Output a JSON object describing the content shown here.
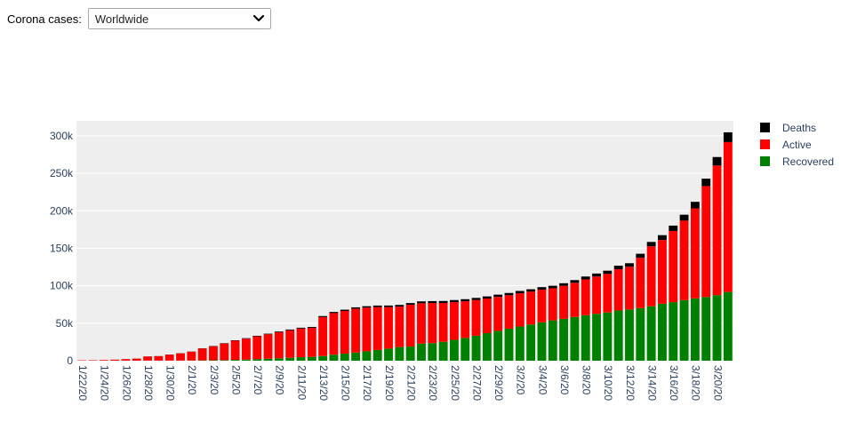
{
  "controls": {
    "label": "Corona cases:",
    "selected": "Worldwide"
  },
  "chart_data": {
    "type": "bar",
    "stacked": true,
    "categories": [
      "1/22/20",
      "1/23/20",
      "1/24/20",
      "1/25/20",
      "1/26/20",
      "1/27/20",
      "1/28/20",
      "1/29/20",
      "1/30/20",
      "1/31/20",
      "2/1/20",
      "2/2/20",
      "2/3/20",
      "2/4/20",
      "2/5/20",
      "2/6/20",
      "2/7/20",
      "2/8/20",
      "2/9/20",
      "2/10/20",
      "2/11/20",
      "2/12/20",
      "2/13/20",
      "2/14/20",
      "2/15/20",
      "2/16/20",
      "2/17/20",
      "2/18/20",
      "2/19/20",
      "2/20/20",
      "2/21/20",
      "2/22/20",
      "2/23/20",
      "2/24/20",
      "2/25/20",
      "2/26/20",
      "2/27/20",
      "2/28/20",
      "2/29/20",
      "3/1/20",
      "3/2/20",
      "3/3/20",
      "3/4/20",
      "3/5/20",
      "3/6/20",
      "3/7/20",
      "3/8/20",
      "3/9/20",
      "3/10/20",
      "3/11/20",
      "3/12/20",
      "3/13/20",
      "3/14/20",
      "3/15/20",
      "3/16/20",
      "3/17/20",
      "3/18/20",
      "3/19/20",
      "3/20/20",
      "3/21/20"
    ],
    "tick_labels": [
      "1/22/20",
      "1/24/20",
      "1/26/20",
      "1/28/20",
      "1/30/20",
      "2/1/20",
      "2/3/20",
      "2/5/20",
      "2/7/20",
      "2/9/20",
      "2/11/20",
      "2/13/20",
      "2/15/20",
      "2/17/20",
      "2/19/20",
      "2/21/20",
      "2/23/20",
      "2/25/20",
      "2/27/20",
      "2/29/20",
      "3/2/20",
      "3/4/20",
      "3/6/20",
      "3/8/20",
      "3/10/20",
      "3/12/20",
      "3/14/20",
      "3/16/20",
      "3/18/20",
      "3/20/20"
    ],
    "series": [
      {
        "name": "Recovered",
        "color": "#008000",
        "values": [
          28,
          30,
          36,
          39,
          52,
          61,
          107,
          126,
          143,
          222,
          284,
          472,
          623,
          852,
          1124,
          1487,
          2011,
          2616,
          3244,
          3946,
          4683,
          5150,
          6295,
          8058,
          9395,
          10865,
          12583,
          14352,
          16121,
          18177,
          18890,
          22886,
          23394,
          25227,
          27905,
          30384,
          33277,
          36711,
          39782,
          42716,
          45602,
          48229,
          51171,
          53797,
          55866,
          58359,
          60695,
          62512,
          64404,
          67003,
          68324,
          70251,
          72624,
          76034,
          78088,
          80840,
          83207,
          84962,
          87403,
          91676
        ]
      },
      {
        "name": "Active",
        "color": "#ff0000",
        "values": [
          510,
          605,
          870,
          1358,
          2010,
          2715,
          5509,
          5909,
          7939,
          9597,
          11640,
          15792,
          18623,
          22082,
          25543,
          27890,
          30498,
          32613,
          34850,
          36638,
          38206,
          38766,
          51900,
          55450,
          56990,
          58570,
          58233,
          57200,
          55380,
          53990,
          55750,
          53780,
          53630,
          51800,
          50280,
          48900,
          47680,
          46200,
          45400,
          44650,
          44350,
          43900,
          43700,
          42850,
          44000,
          45600,
          47800,
          49800,
          51400,
          55100,
          57000,
          67000,
          80000,
          85000,
          95000,
          106000,
          120000,
          148000,
          173000,
          200000
        ]
      },
      {
        "name": "Deaths",
        "color": "#000000",
        "values": [
          17,
          18,
          26,
          42,
          56,
          82,
          131,
          133,
          171,
          213,
          259,
          362,
          426,
          492,
          564,
          634,
          719,
          806,
          906,
          1013,
          1113,
          1118,
          1371,
          1523,
          1666,
          1770,
          1868,
          2007,
          2122,
          2247,
          2251,
          2458,
          2469,
          2629,
          2708,
          2770,
          2814,
          2872,
          2941,
          2996,
          3085,
          3160,
          3254,
          3348,
          3460,
          3558,
          3802,
          3988,
          4262,
          4615,
          4720,
          5404,
          5819,
          6440,
          7126,
          7905,
          8733,
          9867,
          11299,
          12973
        ]
      }
    ],
    "ylim": [
      0,
      320000
    ],
    "yticks": [
      0,
      50000,
      100000,
      150000,
      200000,
      250000,
      300000
    ],
    "ytick_labels": [
      "0",
      "50k",
      "100k",
      "150k",
      "200k",
      "250k",
      "300k"
    ],
    "legend": {
      "position": "top-right",
      "order": [
        "Deaths",
        "Active",
        "Recovered"
      ]
    },
    "plot_background": "#eeeeee",
    "grid": true
  }
}
